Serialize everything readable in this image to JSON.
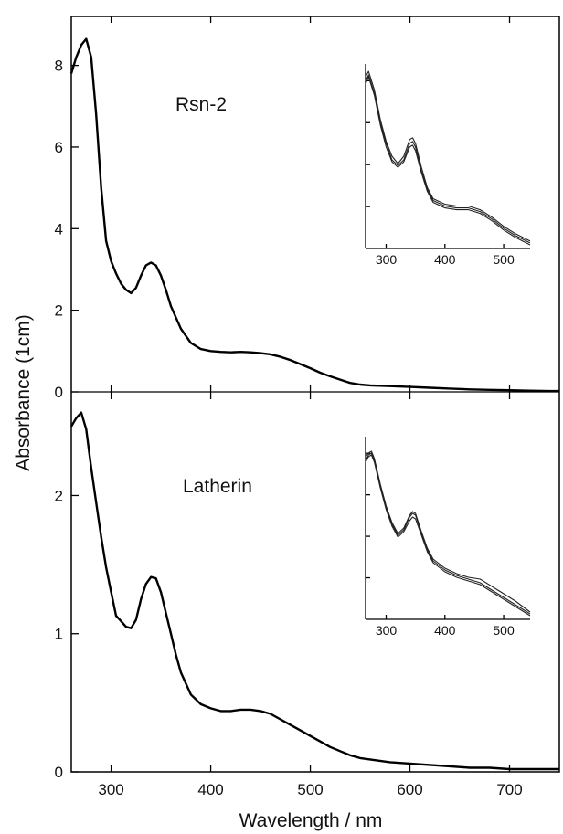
{
  "chart_data": [
    {
      "id": "top",
      "type": "line",
      "label": "Rsn-2",
      "xlim": [
        260,
        750
      ],
      "ylim": [
        0,
        9.2
      ],
      "yticks": [
        0,
        2,
        4,
        6,
        8
      ],
      "series": [
        {
          "x": [
            260,
            265,
            270,
            275,
            280,
            285,
            290,
            295,
            300,
            305,
            310,
            315,
            320,
            325,
            330,
            335,
            340,
            345,
            350,
            355,
            360,
            370,
            380,
            390,
            400,
            410,
            420,
            430,
            440,
            450,
            460,
            470,
            480,
            490,
            500,
            510,
            520,
            530,
            540,
            550,
            560,
            580,
            600,
            620,
            640,
            660,
            680,
            700,
            720,
            740,
            750
          ],
          "y": [
            7.8,
            8.2,
            8.5,
            8.65,
            8.2,
            6.8,
            5.0,
            3.7,
            3.2,
            2.9,
            2.65,
            2.5,
            2.42,
            2.55,
            2.85,
            3.1,
            3.17,
            3.1,
            2.85,
            2.5,
            2.1,
            1.55,
            1.2,
            1.05,
            1.0,
            0.98,
            0.97,
            0.98,
            0.97,
            0.95,
            0.92,
            0.86,
            0.78,
            0.68,
            0.58,
            0.47,
            0.38,
            0.3,
            0.22,
            0.18,
            0.16,
            0.14,
            0.12,
            0.1,
            0.08,
            0.06,
            0.05,
            0.04,
            0.03,
            0.02,
            0.02
          ]
        }
      ],
      "inset": {
        "xlim": [
          265,
          545
        ],
        "xticks": [
          300,
          400,
          500
        ],
        "series": [
          {
            "x": [
              265,
              270,
              280,
              290,
              300,
              310,
              320,
              330,
              340,
              345,
              350,
              360,
              370,
              380,
              400,
              420,
              440,
              460,
              480,
              500,
              520,
              545
            ],
            "y": [
              0.93,
              0.96,
              0.86,
              0.7,
              0.58,
              0.5,
              0.46,
              0.5,
              0.59,
              0.6,
              0.57,
              0.44,
              0.33,
              0.27,
              0.24,
              0.23,
              0.23,
              0.21,
              0.17,
              0.12,
              0.08,
              0.04
            ]
          },
          {
            "x": [
              265,
              270,
              280,
              290,
              300,
              310,
              320,
              330,
              340,
              345,
              350,
              360,
              370,
              380,
              400,
              420,
              440,
              460,
              480,
              500,
              520,
              545
            ],
            "y": [
              0.91,
              0.94,
              0.84,
              0.68,
              0.57,
              0.48,
              0.45,
              0.48,
              0.57,
              0.58,
              0.55,
              0.42,
              0.32,
              0.26,
              0.23,
              0.22,
              0.22,
              0.2,
              0.16,
              0.11,
              0.07,
              0.03
            ]
          },
          {
            "x": [
              265,
              270,
              280,
              290,
              300,
              310,
              320,
              330,
              340,
              345,
              350,
              360,
              370,
              380,
              400,
              420,
              440,
              460,
              480,
              500,
              520,
              545
            ],
            "y": [
              0.89,
              0.93,
              0.83,
              0.67,
              0.55,
              0.47,
              0.44,
              0.47,
              0.55,
              0.56,
              0.53,
              0.41,
              0.31,
              0.25,
              0.22,
              0.21,
              0.21,
              0.19,
              0.15,
              0.1,
              0.06,
              0.02
            ]
          }
        ]
      }
    },
    {
      "id": "bottom",
      "type": "line",
      "label": "Latherin",
      "xlim": [
        260,
        750
      ],
      "ylim": [
        0,
        2.75
      ],
      "yticks": [
        0,
        1,
        2
      ],
      "xticks": [
        300,
        400,
        500,
        600,
        700
      ],
      "series": [
        {
          "x": [
            260,
            265,
            270,
            275,
            280,
            285,
            290,
            295,
            300,
            305,
            310,
            315,
            320,
            325,
            330,
            335,
            340,
            345,
            350,
            355,
            360,
            365,
            370,
            380,
            390,
            400,
            410,
            420,
            430,
            440,
            450,
            460,
            470,
            480,
            490,
            500,
            510,
            520,
            530,
            540,
            550,
            560,
            580,
            600,
            620,
            640,
            660,
            680,
            700,
            720,
            740,
            750
          ],
          "y": [
            2.5,
            2.56,
            2.6,
            2.48,
            2.2,
            1.95,
            1.7,
            1.48,
            1.3,
            1.13,
            1.09,
            1.05,
            1.04,
            1.1,
            1.25,
            1.36,
            1.41,
            1.4,
            1.3,
            1.15,
            1.0,
            0.85,
            0.72,
            0.56,
            0.49,
            0.46,
            0.44,
            0.44,
            0.45,
            0.45,
            0.44,
            0.42,
            0.38,
            0.34,
            0.3,
            0.26,
            0.22,
            0.18,
            0.15,
            0.12,
            0.1,
            0.09,
            0.07,
            0.06,
            0.05,
            0.04,
            0.03,
            0.03,
            0.02,
            0.02,
            0.02,
            0.02
          ]
        }
      ],
      "inset": {
        "xlim": [
          265,
          545
        ],
        "xticks": [
          300,
          400,
          500
        ],
        "series": [
          {
            "x": [
              265,
              270,
              275,
              280,
              290,
              300,
              310,
              320,
              330,
              340,
              345,
              350,
              360,
              370,
              380,
              400,
              420,
              440,
              460,
              480,
              500,
              520,
              545
            ],
            "y": [
              0.89,
              0.91,
              0.92,
              0.88,
              0.74,
              0.62,
              0.53,
              0.47,
              0.5,
              0.57,
              0.59,
              0.58,
              0.48,
              0.39,
              0.33,
              0.28,
              0.25,
              0.23,
              0.22,
              0.18,
              0.14,
              0.1,
              0.04
            ]
          },
          {
            "x": [
              265,
              270,
              275,
              280,
              290,
              300,
              310,
              320,
              330,
              340,
              345,
              350,
              360,
              370,
              380,
              400,
              420,
              440,
              460,
              480,
              500,
              520,
              545
            ],
            "y": [
              0.87,
              0.9,
              0.91,
              0.87,
              0.73,
              0.61,
              0.52,
              0.46,
              0.49,
              0.56,
              0.58,
              0.57,
              0.47,
              0.38,
              0.32,
              0.27,
              0.24,
              0.22,
              0.2,
              0.16,
              0.12,
              0.08,
              0.03
            ]
          },
          {
            "x": [
              265,
              270,
              275,
              280,
              290,
              300,
              310,
              320,
              330,
              340,
              345,
              350,
              360,
              370,
              380,
              400,
              420,
              440,
              460,
              480,
              500,
              520,
              545
            ],
            "y": [
              0.86,
              0.89,
              0.9,
              0.86,
              0.72,
              0.6,
              0.51,
              0.45,
              0.48,
              0.54,
              0.56,
              0.55,
              0.46,
              0.37,
              0.31,
              0.26,
              0.23,
              0.21,
              0.19,
              0.15,
              0.11,
              0.07,
              0.02
            ]
          }
        ]
      }
    }
  ],
  "axes": {
    "xlabel": "Wavelength / nm",
    "ylabel": "Absorbance (1cm)"
  }
}
